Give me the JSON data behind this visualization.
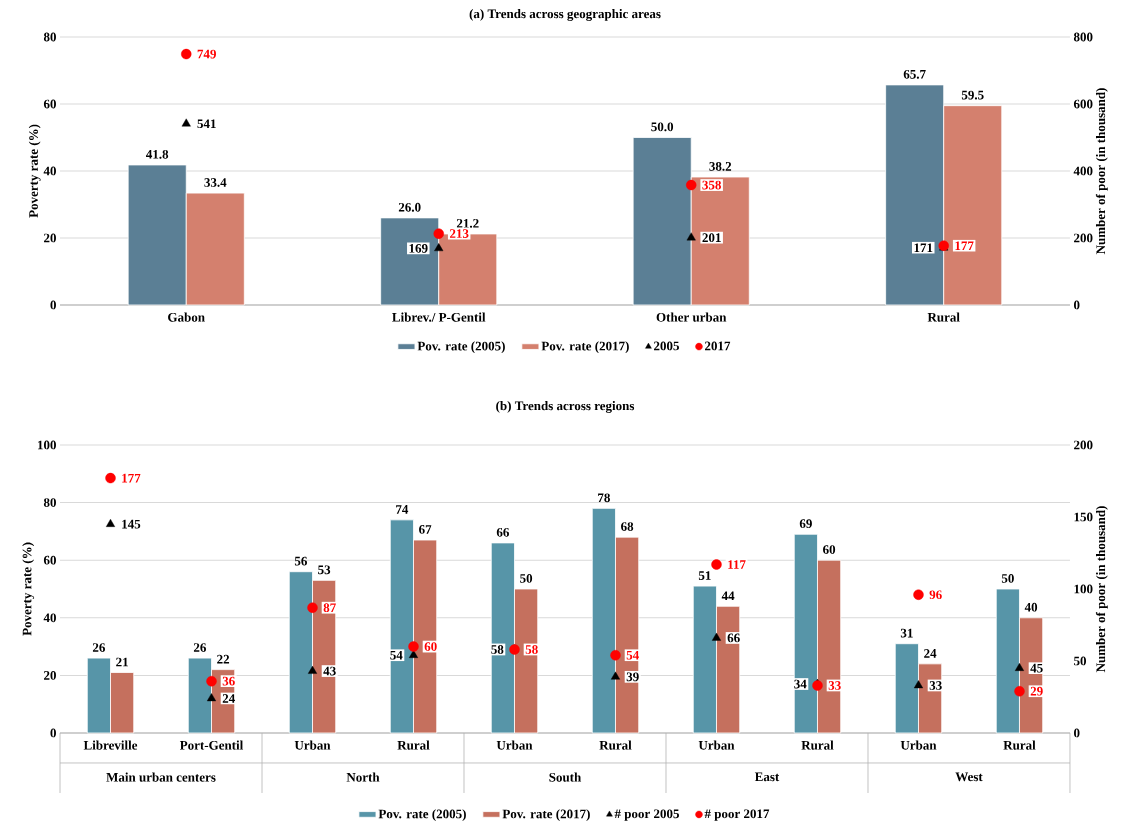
{
  "chart_data": [
    {
      "type": "bar",
      "title": "(a)    Trends across geographic areas",
      "ylabel": "Poverty rate (%)",
      "y2label": "Number of poor (in thousand)",
      "categories": [
        "Gabon",
        "Librev./ P-Gentil",
        "Other urban",
        "Rural"
      ],
      "series": [
        {
          "name": "Pov. rate (2005)",
          "color": "#5b7f95",
          "values": [
            41.8,
            26.0,
            50.0,
            65.7
          ],
          "value_labels": [
            "41.8",
            "26.0",
            "50.0",
            "65.7"
          ]
        },
        {
          "name": "Pov. rate (2017)",
          "color": "#d4806e",
          "values": [
            33.4,
            21.2,
            38.2,
            59.5
          ],
          "value_labels": [
            "33.4",
            "21.2",
            "38.2",
            "59.5"
          ]
        },
        {
          "name": "2005",
          "type": "scatter",
          "axis": "y2",
          "marker": "triangle",
          "color": "#000000",
          "values": [
            541,
            169,
            201,
            171
          ],
          "value_labels": [
            "541",
            "169",
            "201",
            "171"
          ]
        },
        {
          "name": "2017",
          "type": "scatter",
          "axis": "y2",
          "marker": "circle",
          "color": "#ff0000",
          "values": [
            749,
            213,
            358,
            177
          ],
          "value_labels": [
            "749",
            "213",
            "358",
            "177"
          ]
        }
      ],
      "ylim": [
        0,
        80
      ],
      "yticks": [
        0,
        20,
        40,
        60,
        80
      ],
      "y2lim": [
        0,
        800
      ],
      "y2ticks": [
        0,
        200,
        400,
        600,
        800
      ],
      "grid": "y",
      "legend": "bottom"
    },
    {
      "type": "bar",
      "title": "(b)    Trends across regions",
      "ylabel": "Poverty rate (%)",
      "y2label": "Number of poor (in thousand)",
      "categories": [
        "Libreville",
        "Port-Gentil",
        "Urban",
        "Rural",
        "Urban",
        "Rural",
        "Urban",
        "Rural",
        "Urban",
        "Rural"
      ],
      "annotations": [
        "Main urban centers",
        "North",
        "South",
        "East",
        "West"
      ],
      "series": [
        {
          "name": "Pov. rate (2005)",
          "color": "#5795a8",
          "values": [
            26,
            26,
            56,
            74,
            66,
            78,
            51,
            69,
            31,
            50
          ],
          "value_labels": [
            "26",
            "26",
            "56",
            "74",
            "66",
            "78",
            "51",
            "69",
            "31",
            "50"
          ]
        },
        {
          "name": "Pov. rate (2017)",
          "color": "#c5705e",
          "values": [
            21,
            22,
            53,
            67,
            50,
            68,
            44,
            60,
            24,
            40
          ],
          "value_labels": [
            "21",
            "22",
            "53",
            "67",
            "50",
            "68",
            "44",
            "60",
            "24",
            "40"
          ]
        },
        {
          "name": "# poor 2005",
          "type": "scatter",
          "axis": "y2",
          "marker": "triangle",
          "color": "#000000",
          "values": [
            145,
            24,
            43,
            54,
            58,
            39,
            66,
            34,
            33,
            45
          ],
          "value_labels": [
            "145",
            "24",
            "43",
            "54",
            "58",
            "39",
            "66",
            "34",
            "33",
            "45"
          ]
        },
        {
          "name": "# poor 2017",
          "type": "scatter",
          "axis": "y2",
          "marker": "circle",
          "color": "#ff0000",
          "values": [
            177,
            36,
            87,
            60,
            58,
            54,
            117,
            33,
            96,
            29
          ],
          "value_labels": [
            "177",
            "36",
            "87",
            "60",
            "58",
            "54",
            "117",
            "33",
            "96",
            "29"
          ]
        }
      ],
      "ylim": [
        0,
        100
      ],
      "yticks": [
        0,
        20,
        40,
        60,
        80,
        100
      ],
      "y2lim": [
        0,
        200
      ],
      "y2ticks": [
        0,
        50,
        100,
        150,
        200
      ],
      "grid": "y",
      "legend": "bottom"
    }
  ]
}
